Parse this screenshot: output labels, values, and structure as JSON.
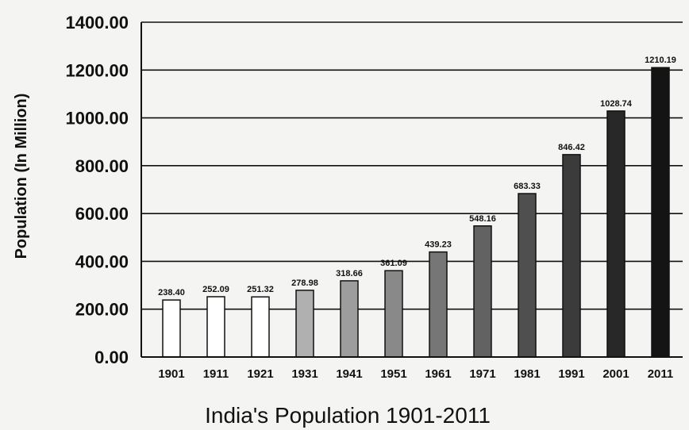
{
  "chart_data": {
    "type": "bar",
    "title": "India's Population 1901-2011",
    "ylabel": "Population (In Million)",
    "xlabel": "",
    "ylim": [
      0,
      1400
    ],
    "grid": true,
    "categories": [
      "1901",
      "1911",
      "1921",
      "1931",
      "1941",
      "1951",
      "1961",
      "1971",
      "1981",
      "1991",
      "2001",
      "2011"
    ],
    "values": [
      238.4,
      252.09,
      251.32,
      278.98,
      318.66,
      361.09,
      439.23,
      548.16,
      683.33,
      846.42,
      1028.74,
      1210.19
    ],
    "data_labels": [
      "238.40",
      "252.09",
      "251.32",
      "278.98",
      "318.66",
      "361.09",
      "439.23",
      "548.16",
      "683.33",
      "846.42",
      "1028.74",
      "1210.19"
    ],
    "y_ticks": [
      "0.00",
      "200.00",
      "400.00",
      "600.00",
      "800.00",
      "1000.00",
      "1200.00",
      "1400.00"
    ],
    "y_tick_values": [
      0,
      200,
      400,
      600,
      800,
      1000,
      1200,
      1400
    ],
    "colors": {
      "bar_outline": "#111111",
      "bar_empty": "#ffffff",
      "bar_dark": "#1a1a1a",
      "grid": "#111111",
      "background": "#f4f4f2"
    }
  }
}
